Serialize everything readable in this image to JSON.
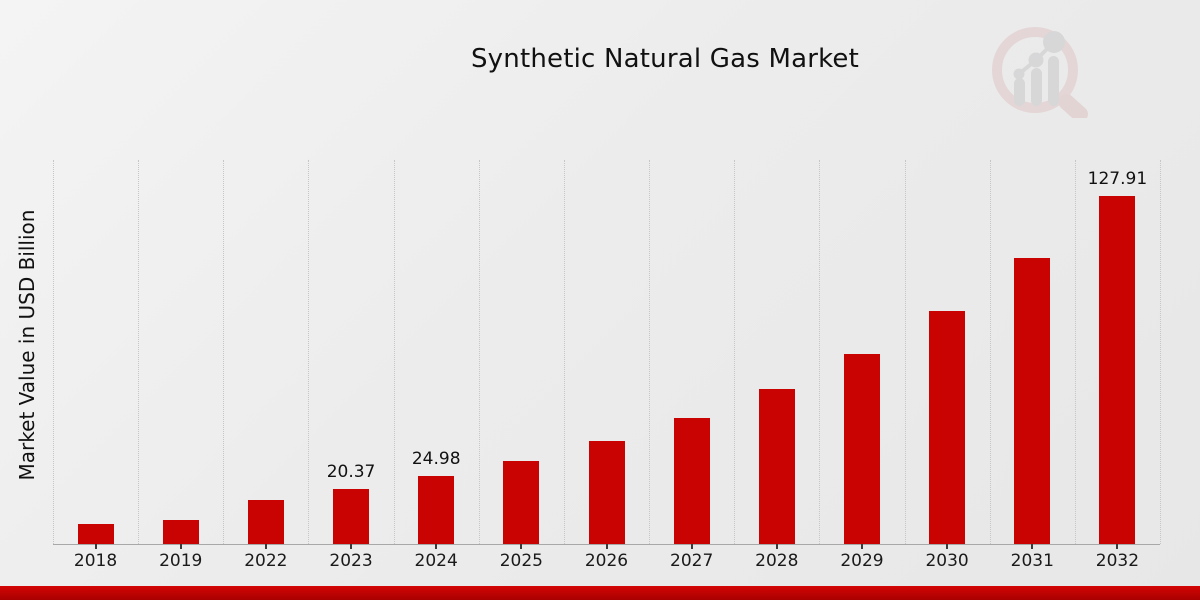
{
  "title": "Synthetic Natural Gas Market",
  "y_axis_label": "Market Value in USD Billion",
  "colors": {
    "bar": "#c80301",
    "bottom_strip_top": "#d40505",
    "bottom_strip_bottom": "#a80000",
    "grid": "#c6c6c6",
    "background_light": "#f4f4f4",
    "background_dark": "#e7e7e7",
    "text": "#111111"
  },
  "icons": {
    "watermark": "magnifier-bar-chart-logo"
  },
  "chart_data": {
    "type": "bar",
    "title": "Synthetic Natural Gas Market",
    "xlabel": "",
    "ylabel": "Market Value in USD Billion",
    "categories": [
      "2018",
      "2019",
      "2022",
      "2023",
      "2024",
      "2025",
      "2026",
      "2027",
      "2028",
      "2029",
      "2030",
      "2031",
      "2032"
    ],
    "values": [
      7.4,
      9.0,
      16.0,
      20.37,
      24.98,
      30.4,
      37.8,
      46.2,
      56.9,
      69.6,
      85.5,
      104.9,
      127.91
    ],
    "data_labels": [
      null,
      null,
      null,
      "20.37",
      "24.98",
      null,
      null,
      null,
      null,
      null,
      null,
      null,
      "127.91"
    ],
    "ylim": [
      0,
      141
    ],
    "y_axis_ticks_visible": false,
    "grid": "vertical-dotted",
    "legend": "none",
    "bar_color": "#c80301"
  }
}
